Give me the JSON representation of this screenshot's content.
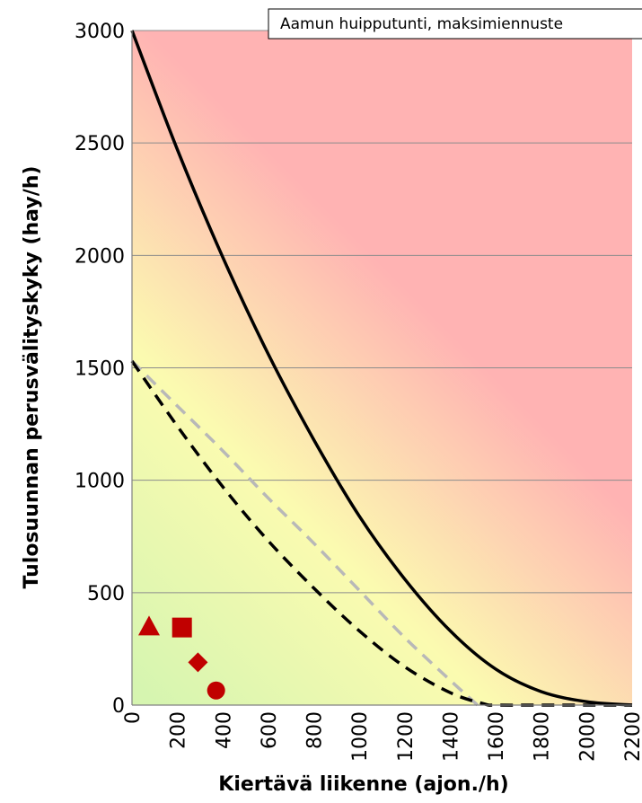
{
  "chart_data": {
    "type": "line",
    "annotation": "Aamun huipputunti, maksimiennuste",
    "xlabel": "Kiertävä liikenne (ajon./h)",
    "ylabel": "Tulosuunnan perusvälityskyky (hay/h)",
    "xlim": [
      0,
      2200
    ],
    "ylim": [
      0,
      3000
    ],
    "x_ticks": [
      "0",
      "200",
      "400",
      "600",
      "800",
      "1000",
      "1200",
      "1400",
      "1600",
      "1800",
      "2000",
      "2200"
    ],
    "y_ticks": [
      "0",
      "500",
      "1000",
      "1500",
      "2000",
      "2500",
      "3000"
    ],
    "grid": "horizontal",
    "background": "green-yellow-red gradient",
    "colors": {
      "good": "#d6f5b0",
      "mid": "#fbfbb0",
      "bad": "#ffb3b3",
      "solid": "#000000",
      "dashed": "#000000",
      "light_dashed": "#b8b8b8",
      "markers": "#c00000"
    },
    "series": [
      {
        "style": "solid-black",
        "x": [
          0,
          200,
          400,
          600,
          800,
          1000,
          1200,
          1400,
          1600,
          1800,
          2000,
          2200
        ],
        "y": [
          3000,
          2470,
          1990,
          1560,
          1180,
          840,
          560,
          330,
          160,
          60,
          15,
          0
        ]
      },
      {
        "style": "dashed-black",
        "x": [
          0,
          200,
          400,
          600,
          800,
          1000,
          1200,
          1400,
          1550,
          1600,
          1800,
          2000,
          2200
        ],
        "y": [
          1530,
          1240,
          970,
          730,
          520,
          330,
          170,
          55,
          5,
          0,
          0,
          0,
          0
        ]
      },
      {
        "style": "dashed-lightgray",
        "x": [
          0,
          200,
          400,
          600,
          800,
          1000,
          1200,
          1400,
          1520
        ],
        "y": [
          1530,
          1330,
          1130,
          920,
          720,
          510,
          300,
          110,
          0
        ]
      }
    ],
    "points": [
      {
        "marker": "triangle",
        "x": 75,
        "y": 350
      },
      {
        "marker": "square",
        "x": 220,
        "y": 345
      },
      {
        "marker": "diamond",
        "x": 290,
        "y": 190
      },
      {
        "marker": "circle",
        "x": 370,
        "y": 65
      }
    ]
  }
}
